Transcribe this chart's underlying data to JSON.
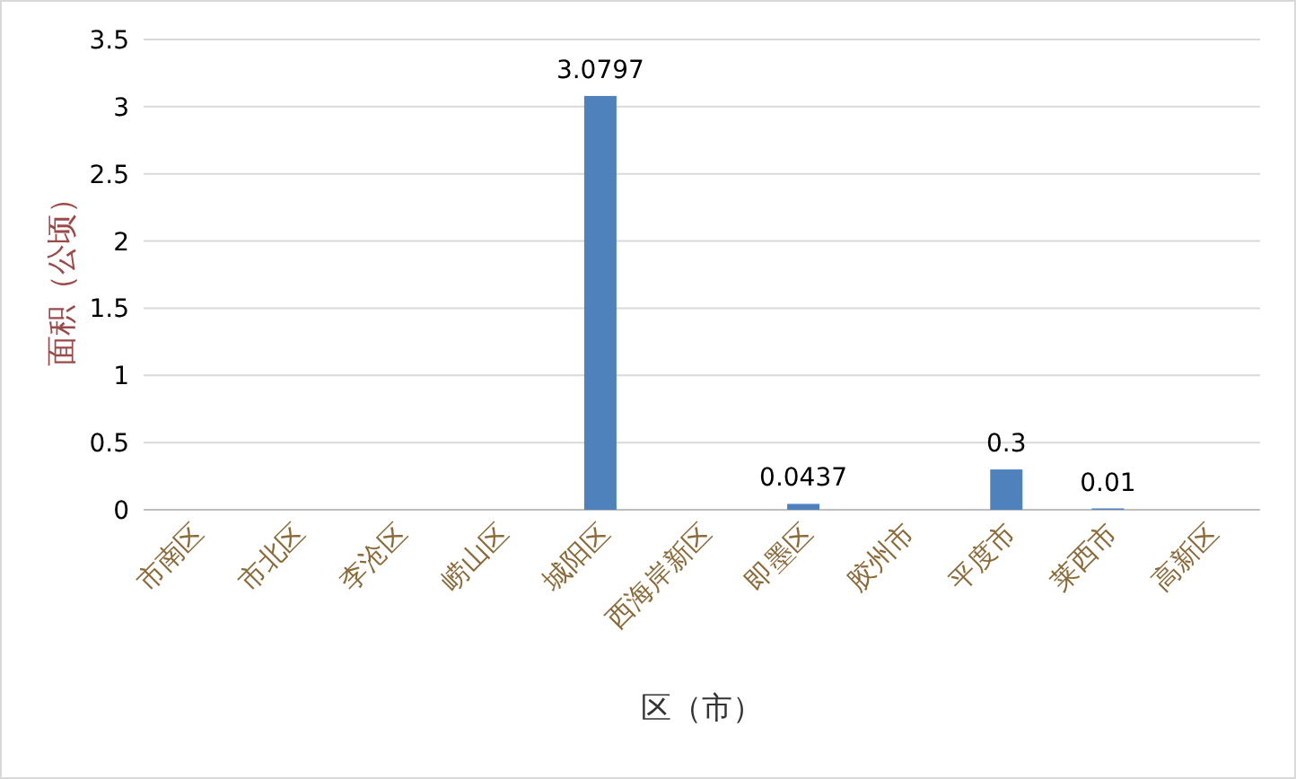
{
  "chart_data": {
    "type": "bar",
    "xlabel": "区（市）",
    "ylabel": "面积（公顷）",
    "categories": [
      "市南区",
      "市北区",
      "李沧区",
      "崂山区",
      "城阳区",
      "西海岸新区",
      "即墨区",
      "胶州市",
      "平度市",
      "莱西市",
      "高新区"
    ],
    "values": [
      0,
      0,
      0,
      0,
      3.0797,
      0,
      0.0437,
      0,
      0.3,
      0.01,
      0
    ],
    "value_labels": [
      null,
      null,
      null,
      null,
      "3.0797",
      null,
      "0.0437",
      null,
      "0.3",
      "0.01",
      null
    ],
    "color": "#4f81bd",
    "ylim": [
      0,
      3.5
    ],
    "yticks": [
      0,
      0.5,
      1,
      1.5,
      2,
      2.5,
      3,
      3.5
    ],
    "grid": "y"
  }
}
